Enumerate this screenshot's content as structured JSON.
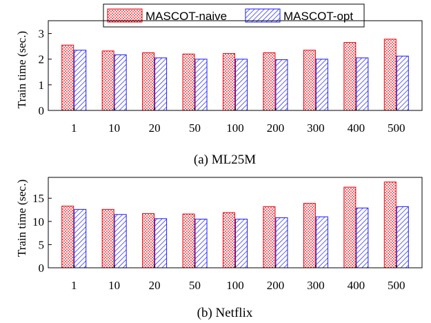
{
  "legend": {
    "items": [
      {
        "label": "MASCOT-naive",
        "pattern": "dots",
        "color": "#e8000b"
      },
      {
        "label": "MASCOT-opt",
        "pattern": "hatch",
        "color": "#1a1aff"
      }
    ]
  },
  "chart_data": [
    {
      "type": "bar",
      "caption": "(a) ML25M",
      "xlabel": "",
      "ylabel": "Train time (sec.)",
      "categories": [
        "1",
        "10",
        "20",
        "50",
        "100",
        "200",
        "300",
        "400",
        "500"
      ],
      "yticks": [
        0,
        1,
        2,
        3
      ],
      "ylim": [
        0,
        3.5
      ],
      "series": [
        {
          "name": "MASCOT-naive",
          "values": [
            2.55,
            2.32,
            2.25,
            2.2,
            2.22,
            2.25,
            2.35,
            2.65,
            2.78
          ]
        },
        {
          "name": "MASCOT-opt",
          "values": [
            2.35,
            2.17,
            2.05,
            2.0,
            2.0,
            1.98,
            2.0,
            2.05,
            2.12
          ]
        }
      ]
    },
    {
      "type": "bar",
      "caption": "(b) Netflix",
      "xlabel": "",
      "ylabel": "Train time (sec.)",
      "categories": [
        "1",
        "10",
        "20",
        "50",
        "100",
        "200",
        "300",
        "400",
        "500"
      ],
      "yticks": [
        0,
        5,
        10,
        15
      ],
      "ylim": [
        0,
        19.5
      ],
      "series": [
        {
          "name": "MASCOT-naive",
          "values": [
            13.3,
            12.6,
            11.7,
            11.6,
            11.9,
            13.2,
            13.9,
            17.4,
            18.5
          ]
        },
        {
          "name": "MASCOT-opt",
          "values": [
            12.6,
            11.5,
            10.6,
            10.5,
            10.5,
            10.8,
            11.0,
            12.9,
            13.2
          ]
        }
      ]
    }
  ]
}
